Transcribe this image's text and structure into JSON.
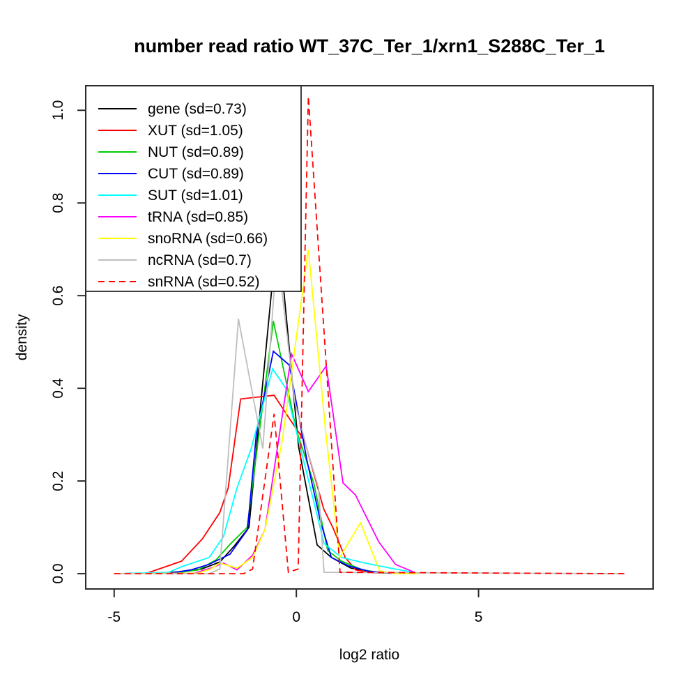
{
  "chart_data": {
    "type": "line",
    "title": "number read ratio WT_37C_Ter_1/xrn1_S288C_Ter_1",
    "xlabel": "log2 ratio",
    "ylabel": "density",
    "xlim": [
      -5.78,
      9.79
    ],
    "ylim": [
      -0.033,
      1.053
    ],
    "x_ticks": [
      "-5",
      "0",
      "5"
    ],
    "x_tick_values": [
      -5,
      0,
      5
    ],
    "y_ticks": [
      "0.0",
      "0.2",
      "0.4",
      "0.6",
      "0.8",
      "1.0"
    ],
    "y_tick_values": [
      0,
      0.2,
      0.4,
      0.6,
      0.8,
      1.0
    ],
    "grid": false,
    "legend_position": "top-left",
    "series": [
      {
        "name": "gene",
        "label": "gene (sd=0.73)",
        "color": "#000000",
        "dash": "solid",
        "points": [
          [
            -5,
            0
          ],
          [
            -3.8,
            0.001
          ],
          [
            -3.2,
            0.004
          ],
          [
            -2.6,
            0.01
          ],
          [
            -2.1,
            0.025
          ],
          [
            -1.7,
            0.06
          ],
          [
            -1.3,
            0.1
          ],
          [
            -0.51,
            0.75
          ],
          [
            0.06,
            0.275
          ],
          [
            0.57,
            0.062
          ],
          [
            0.96,
            0.035
          ],
          [
            1.5,
            0.012
          ],
          [
            2.2,
            0.003
          ],
          [
            3.35,
            0.001
          ]
        ]
      },
      {
        "name": "XUT",
        "label": "XUT (sd=1.05)",
        "color": "#FF0000",
        "dash": "solid",
        "points": [
          [
            -5,
            0
          ],
          [
            -4.1,
            0.001
          ],
          [
            -3.15,
            0.027
          ],
          [
            -2.58,
            0.075
          ],
          [
            -2.1,
            0.132
          ],
          [
            -1.87,
            0.185
          ],
          [
            -1.53,
            0.377
          ],
          [
            -0.61,
            0.385
          ],
          [
            -0.15,
            0.33
          ],
          [
            0.23,
            0.286
          ],
          [
            0.42,
            0.233
          ],
          [
            0.75,
            0.14
          ],
          [
            1.01,
            0.098
          ],
          [
            1.34,
            0.035
          ],
          [
            1.63,
            0.008
          ],
          [
            2.1,
            0.002
          ],
          [
            3.35,
            0
          ]
        ]
      },
      {
        "name": "NUT",
        "label": "NUT (sd=0.89)",
        "color": "#00CD00",
        "dash": "solid",
        "points": [
          [
            -5,
            0
          ],
          [
            -3.3,
            0.002
          ],
          [
            -2.7,
            0.008
          ],
          [
            -2.2,
            0.03
          ],
          [
            -1.8,
            0.065
          ],
          [
            -1.35,
            0.1
          ],
          [
            -0.63,
            0.545
          ],
          [
            0.0,
            0.31
          ],
          [
            0.48,
            0.195
          ],
          [
            0.86,
            0.05
          ],
          [
            1.24,
            0.027
          ],
          [
            1.82,
            0.008
          ],
          [
            2.3,
            0.002
          ],
          [
            3.35,
            0
          ]
        ]
      },
      {
        "name": "CUT",
        "label": "CUT (sd=0.89)",
        "color": "#0000FF",
        "dash": "solid",
        "points": [
          [
            -5,
            0
          ],
          [
            -3.4,
            0.002
          ],
          [
            -2.9,
            0.008
          ],
          [
            -2.4,
            0.02
          ],
          [
            -1.82,
            0.042
          ],
          [
            -1.34,
            0.095
          ],
          [
            -1.1,
            0.3
          ],
          [
            -0.63,
            0.48
          ],
          [
            -0.19,
            0.45
          ],
          [
            0.29,
            0.245
          ],
          [
            0.67,
            0.11
          ],
          [
            0.96,
            0.035
          ],
          [
            1.43,
            0.017
          ],
          [
            2.0,
            0.005
          ],
          [
            2.6,
            0.001
          ],
          [
            3.35,
            0
          ]
        ]
      },
      {
        "name": "SUT",
        "label": "SUT (sd=1.01)",
        "color": "#00FFFF",
        "dash": "solid",
        "points": [
          [
            -5,
            0
          ],
          [
            -3.5,
            0.003
          ],
          [
            -3.15,
            0.015
          ],
          [
            -2.39,
            0.035
          ],
          [
            -2.0,
            0.08
          ],
          [
            -1.63,
            0.185
          ],
          [
            -1.24,
            0.27
          ],
          [
            -0.65,
            0.442
          ],
          [
            -0.29,
            0.4
          ],
          [
            0.1,
            0.275
          ],
          [
            0.48,
            0.155
          ],
          [
            0.76,
            0.065
          ],
          [
            1.24,
            0.035
          ],
          [
            1.82,
            0.024
          ],
          [
            2.58,
            0.012
          ],
          [
            3.35,
            0.001
          ]
        ]
      },
      {
        "name": "tRNA",
        "label": "tRNA (sd=0.85)",
        "color": "#FF00FF",
        "dash": "solid",
        "points": [
          [
            -5,
            0
          ],
          [
            -2.8,
            0.001
          ],
          [
            -2.35,
            0.012
          ],
          [
            -2.0,
            0.023
          ],
          [
            -1.63,
            0.008
          ],
          [
            -1.2,
            0.04
          ],
          [
            -0.86,
            0.095
          ],
          [
            -0.13,
            0.474
          ],
          [
            0.33,
            0.393
          ],
          [
            0.82,
            0.448
          ],
          [
            1.28,
            0.196
          ],
          [
            1.62,
            0.17
          ],
          [
            2.26,
            0.069
          ],
          [
            2.72,
            0.02
          ],
          [
            3.3,
            0.001
          ]
        ]
      },
      {
        "name": "snoRNA",
        "label": "snoRNA (sd=0.66)",
        "color": "#FFFF00",
        "dash": "solid",
        "points": [
          [
            -5,
            0
          ],
          [
            -2.7,
            0.001
          ],
          [
            -2.35,
            0.01
          ],
          [
            -2.1,
            0.023
          ],
          [
            -1.63,
            0.012
          ],
          [
            -1.2,
            0.035
          ],
          [
            -0.86,
            0.095
          ],
          [
            -0.38,
            0.29
          ],
          [
            0.33,
            0.7
          ],
          [
            0.8,
            0.31
          ],
          [
            1.19,
            0.035
          ],
          [
            1.76,
            0.11
          ],
          [
            2.29,
            0.006
          ],
          [
            2.7,
            0
          ],
          [
            3.35,
            0
          ]
        ]
      },
      {
        "name": "ncRNA",
        "label": "ncRNA (sd=0.7)",
        "color": "#BEBEBE",
        "dash": "solid",
        "points": [
          [
            -5,
            0
          ],
          [
            -2.4,
            0
          ],
          [
            -2.1,
            0.01
          ],
          [
            -1.59,
            0.55
          ],
          [
            -0.92,
            0.27
          ],
          [
            -0.53,
            0.7
          ],
          [
            -0.04,
            0.37
          ],
          [
            0.29,
            0.27
          ],
          [
            0.61,
            0.185
          ],
          [
            0.76,
            0.003
          ],
          [
            9.0,
            0
          ]
        ]
      },
      {
        "name": "snRNA",
        "label": "snRNA (sd=0.52)",
        "color": "#FF0000",
        "dash": "dashed",
        "points": [
          [
            -5,
            0
          ],
          [
            -1.45,
            0
          ],
          [
            -1.2,
            0.01
          ],
          [
            -0.61,
            0.345
          ],
          [
            -0.22,
            0.003
          ],
          [
            0.05,
            0.01
          ],
          [
            0.33,
            1.03
          ],
          [
            1.2,
            0.003
          ],
          [
            9.0,
            0
          ]
        ]
      }
    ]
  }
}
